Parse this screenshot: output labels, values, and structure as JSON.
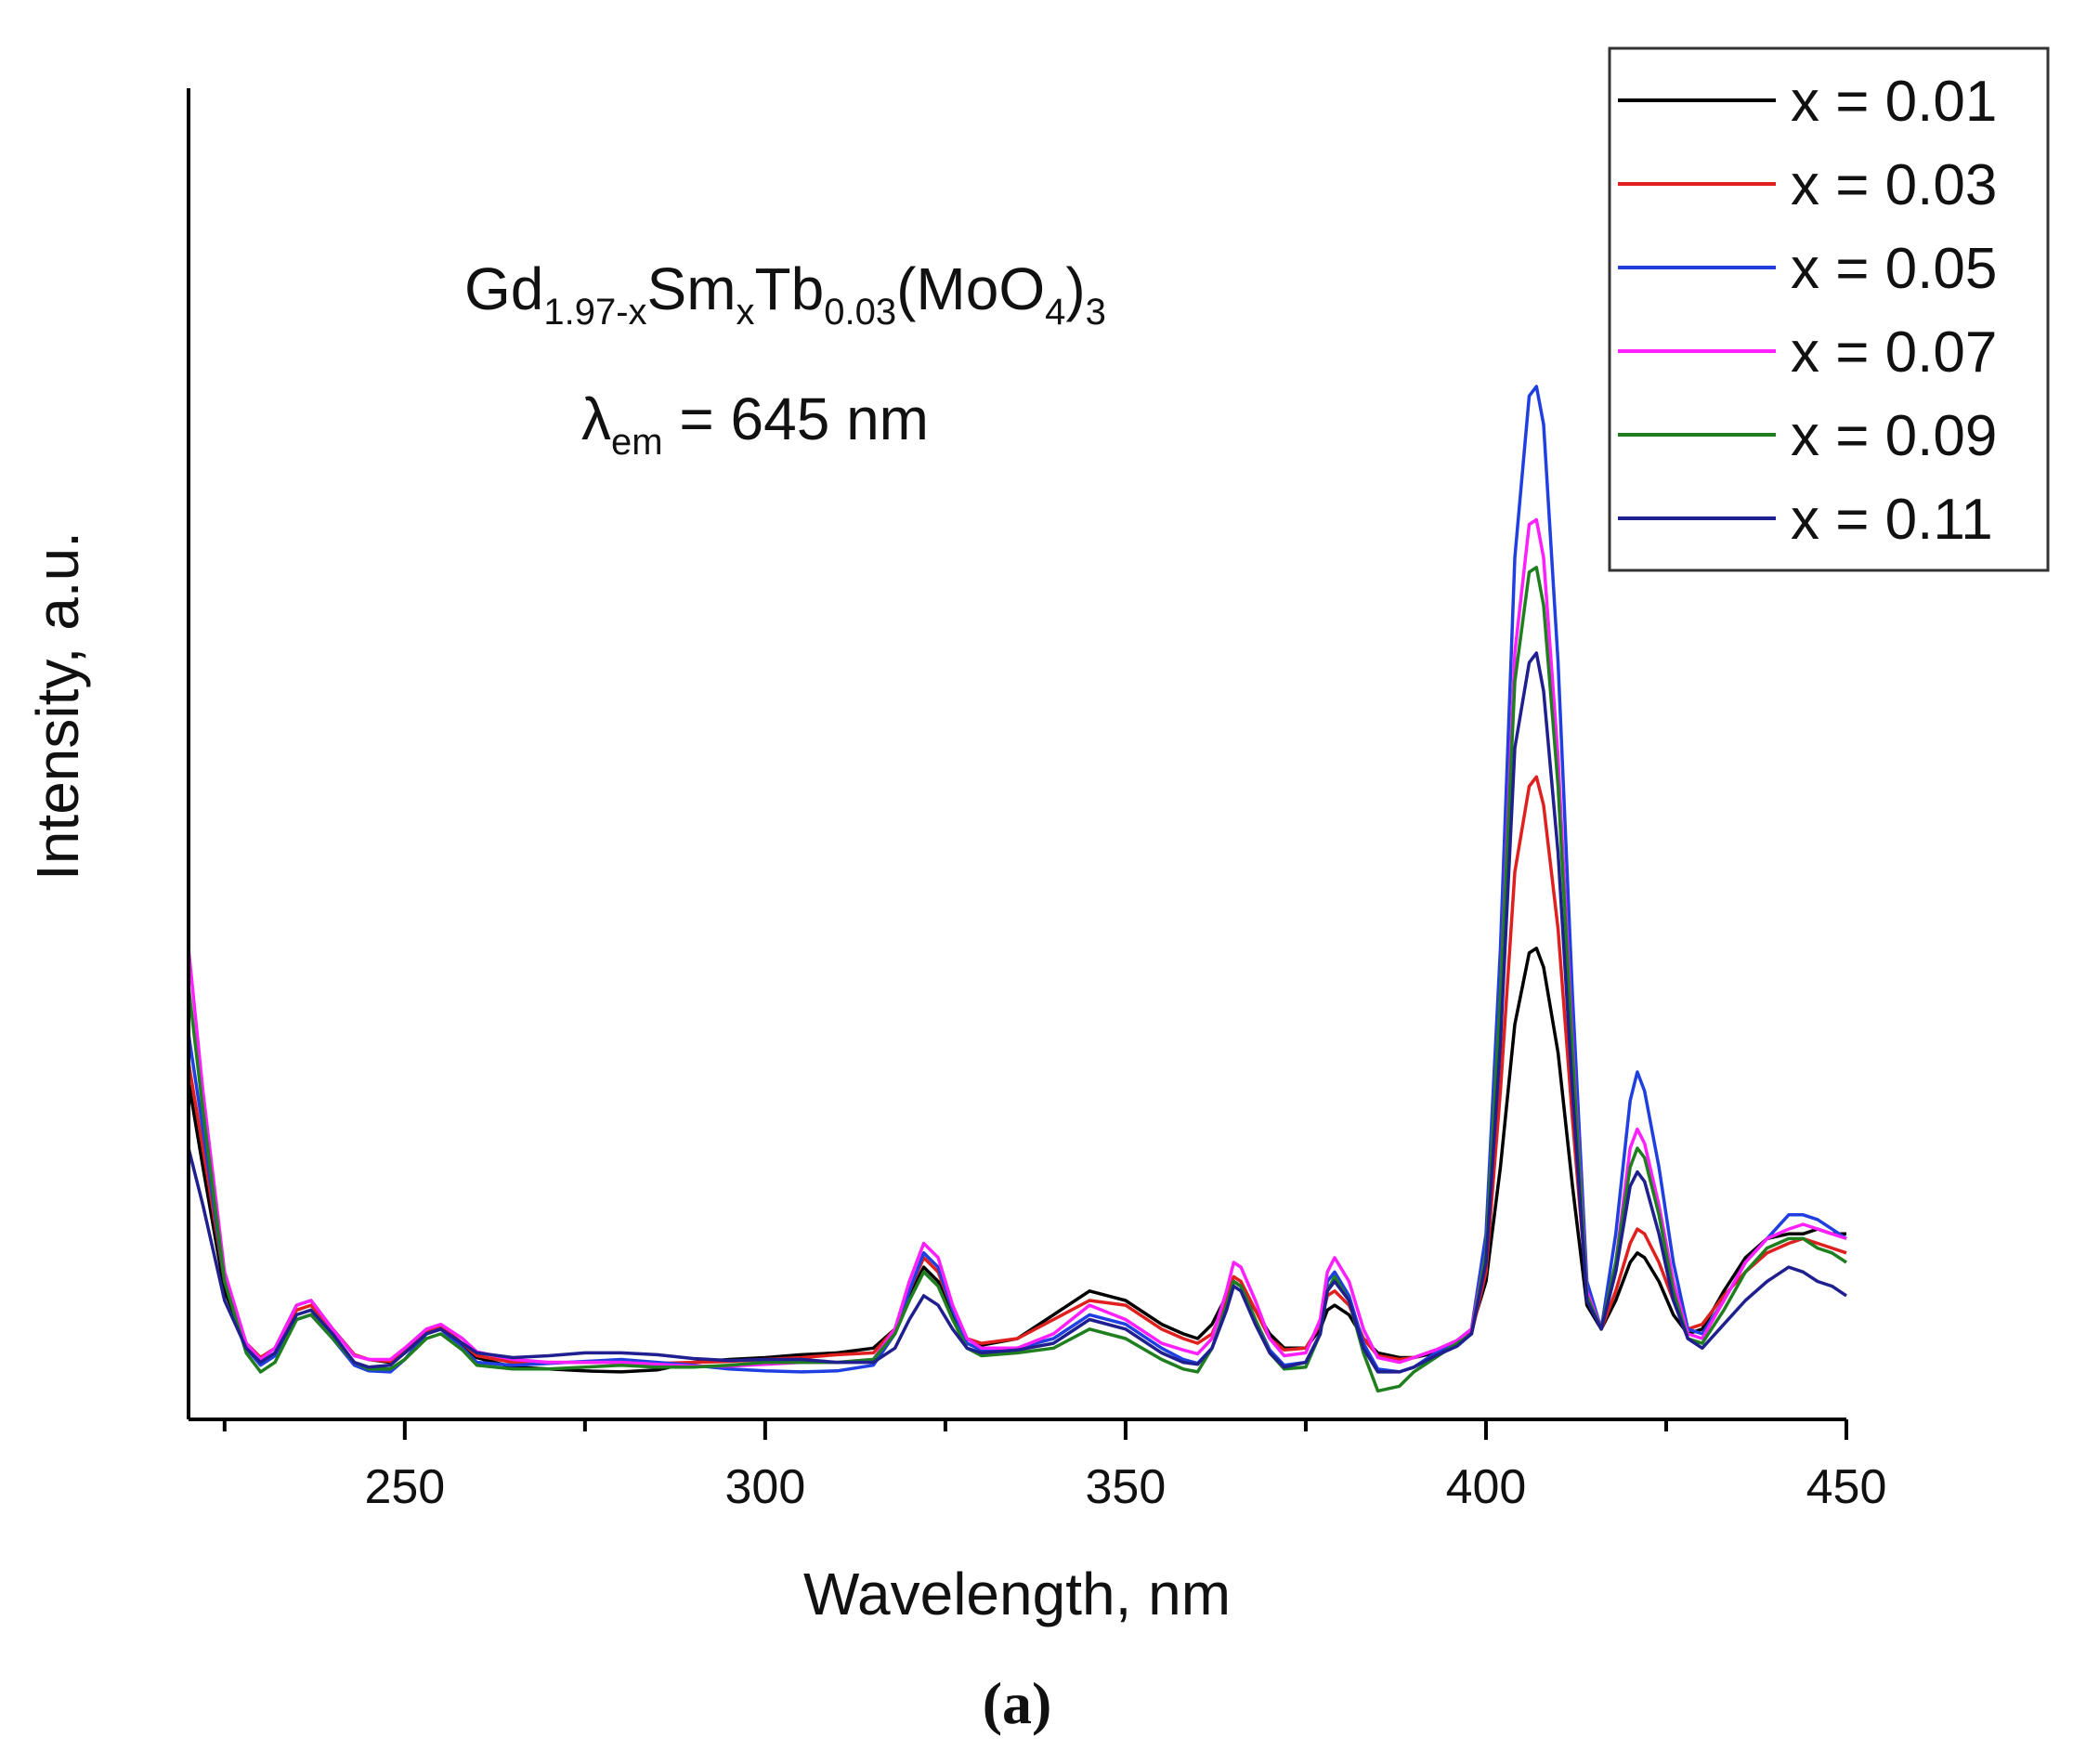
{
  "chart_data": {
    "type": "line",
    "title": "",
    "xlabel": "Wavelength, nm",
    "ylabel": "Intensity, a.u.",
    "xlim": [
      220,
      450
    ],
    "ylim": [
      0,
      100
    ],
    "x_ticks": [
      250,
      300,
      350,
      400,
      450
    ],
    "y_ticks_shown": false,
    "legend_position": "top-right",
    "annotation": {
      "formula": {
        "base1": "Gd",
        "sub1": "1.97-x",
        "base2": "Sm",
        "sub2": "x",
        "base3": "Tb",
        "sub3": "0.03",
        "base4": "(MoO",
        "sub4": "4",
        "base5": ")",
        "sub5": "3"
      },
      "lambda": {
        "symbol": "λ",
        "sub": "em",
        "rest": " = 645 nm"
      }
    },
    "panel_label": {
      "open": "(",
      "letter": "a",
      "close": ")"
    },
    "x": [
      220,
      222,
      225,
      228,
      230,
      232,
      235,
      237,
      240,
      243,
      245,
      248,
      250,
      253,
      255,
      258,
      260,
      265,
      270,
      275,
      280,
      285,
      290,
      295,
      300,
      305,
      310,
      315,
      318,
      320,
      322,
      324,
      326,
      328,
      330,
      335,
      340,
      345,
      350,
      355,
      358,
      360,
      362,
      364,
      365,
      366,
      368,
      370,
      372,
      375,
      377,
      378,
      379,
      381,
      383,
      385,
      388,
      390,
      393,
      396,
      398,
      400,
      402,
      404,
      406,
      407,
      408,
      410,
      412,
      414,
      416,
      418,
      420,
      421,
      422,
      424,
      426,
      428,
      430,
      433,
      436,
      439,
      442,
      444,
      446,
      448,
      450
    ],
    "series": [
      {
        "name": "x = 0.01",
        "color": "#000000",
        "values": [
          31,
          22,
          9,
          3.5,
          2.0,
          3.0,
          7.5,
          8.0,
          5.0,
          2.3,
          1.8,
          1.5,
          2.5,
          4.5,
          5.0,
          3.2,
          2.0,
          1.0,
          0.8,
          0.6,
          0.5,
          0.7,
          1.5,
          1.8,
          2.0,
          2.3,
          2.5,
          3.0,
          5.0,
          8.5,
          11.5,
          10,
          6.5,
          4.0,
          3.3,
          4.0,
          6.5,
          9.0,
          8.0,
          5.5,
          4.5,
          4.0,
          5.5,
          8.5,
          10,
          9.5,
          7.0,
          4.5,
          3.0,
          3.0,
          5.0,
          7.0,
          7.5,
          6.5,
          4.0,
          2.5,
          2.0,
          2.0,
          2.5,
          3.5,
          5.0,
          10,
          22,
          37,
          44.5,
          45,
          43,
          34,
          20,
          7.5,
          5.0,
          8.0,
          12,
          13,
          12.5,
          10,
          6.5,
          4.5,
          5.0,
          9.0,
          12.5,
          14.5,
          15,
          15,
          15.5,
          15,
          15
        ]
      },
      {
        "name": "x = 0.03",
        "color": "#e01f1f",
        "values": [
          33,
          24,
          10,
          3.5,
          2.0,
          3.0,
          7.0,
          7.5,
          5.0,
          2.3,
          1.8,
          1.6,
          2.6,
          4.8,
          5.3,
          3.5,
          2.2,
          1.5,
          1.5,
          1.5,
          1.5,
          1.4,
          1.5,
          1.6,
          1.8,
          2.0,
          2.3,
          2.5,
          5.0,
          9.0,
          12.5,
          11,
          7.0,
          4.0,
          3.5,
          4.0,
          6.0,
          8.0,
          7.5,
          5.0,
          4.0,
          3.5,
          4.5,
          8.0,
          10.5,
          10,
          7.0,
          4.0,
          2.8,
          3.0,
          5.5,
          8.5,
          9.0,
          7.5,
          4.0,
          2.2,
          1.8,
          2.0,
          2.8,
          3.5,
          4.5,
          11,
          30,
          53,
          62,
          63,
          60,
          47,
          27,
          9.0,
          5.0,
          9.0,
          14,
          15.5,
          15,
          12,
          8.0,
          5.0,
          5.5,
          8.5,
          11,
          13,
          14,
          14.5,
          14,
          13.5,
          13
        ]
      },
      {
        "name": "x = 0.05",
        "color": "#1f3fe0",
        "values": [
          36,
          26,
          10,
          3.0,
          1.2,
          2.2,
          6.0,
          6.5,
          4.0,
          1.2,
          0.6,
          0.5,
          1.8,
          4.5,
          5.0,
          3.0,
          1.5,
          1.2,
          1.4,
          1.6,
          1.8,
          1.5,
          1.2,
          0.8,
          0.6,
          0.5,
          0.6,
          1.2,
          4.5,
          9.0,
          13,
          11.5,
          7.0,
          3.5,
          2.8,
          3.0,
          4.0,
          6.5,
          5.5,
          3.0,
          1.8,
          1.4,
          3.0,
          7.0,
          10,
          9.5,
          6.0,
          2.8,
          1.2,
          1.5,
          4.5,
          10,
          11,
          8.5,
          3.5,
          0.8,
          0.5,
          1.0,
          2.5,
          3.8,
          5.0,
          15,
          45,
          86,
          103,
          104,
          100,
          75,
          40,
          10,
          5.0,
          15,
          29,
          32,
          30,
          22,
          12,
          5.0,
          4.5,
          8.0,
          12,
          14.5,
          17,
          17,
          16.5,
          15.5,
          14.5
        ]
      },
      {
        "name": "x = 0.07",
        "color": "#ff1fff",
        "values": [
          45,
          30,
          11,
          3.5,
          1.8,
          3.0,
          7.5,
          8.0,
          5.0,
          2.2,
          1.8,
          1.8,
          3.0,
          5.0,
          5.5,
          4.0,
          2.6,
          1.8,
          1.5,
          1.5,
          1.5,
          1.3,
          1.1,
          1.1,
          1.3,
          1.5,
          1.5,
          1.8,
          5.0,
          10,
          14,
          12.5,
          7.5,
          4.0,
          3.0,
          3.0,
          4.5,
          7.5,
          6.0,
          3.5,
          2.8,
          2.4,
          4.0,
          9.0,
          12,
          11.5,
          8.0,
          4.0,
          2.2,
          2.5,
          6.0,
          11,
          12.5,
          10,
          5.0,
          2.0,
          1.5,
          2.0,
          2.8,
          3.8,
          5.0,
          13,
          40,
          76,
          89.5,
          90,
          86,
          65,
          35,
          9.0,
          5.0,
          12,
          24,
          26,
          24.5,
          18,
          10,
          4.5,
          4.0,
          8.0,
          12,
          14.5,
          15.5,
          16,
          15.5,
          15,
          14.5
        ]
      },
      {
        "name": "x = 0.09",
        "color": "#1f7f1f",
        "values": [
          41,
          28,
          10,
          2.5,
          0.5,
          1.5,
          6.0,
          6.5,
          4.0,
          1.5,
          0.8,
          0.8,
          1.8,
          4.0,
          4.5,
          2.8,
          1.2,
          0.8,
          0.8,
          1.0,
          1.2,
          1.0,
          1.0,
          1.2,
          1.5,
          1.5,
          1.5,
          1.8,
          4.5,
          8.0,
          11,
          9.5,
          6.0,
          3.0,
          2.2,
          2.5,
          3.0,
          5.0,
          4.0,
          1.8,
          0.8,
          0.5,
          3.0,
          7.5,
          10,
          9.5,
          6.0,
          2.5,
          0.8,
          1.0,
          4.5,
          9.0,
          10.5,
          8.0,
          2.5,
          -1.5,
          -1.0,
          0.5,
          2.0,
          3.5,
          4.5,
          13,
          40,
          73,
          84.5,
          85,
          81,
          62,
          34,
          8.5,
          5.0,
          12,
          22,
          24,
          23,
          17,
          9.0,
          4.0,
          3.5,
          7.0,
          11,
          13.5,
          14.5,
          14.5,
          13.5,
          13,
          12
        ]
      },
      {
        "name": "x = 0.11",
        "color": "#1f1f8f",
        "values": [
          24,
          18,
          8,
          3.0,
          1.5,
          2.5,
          6.5,
          7.0,
          4.5,
          1.5,
          1.0,
          1.2,
          2.5,
          4.5,
          5.0,
          3.5,
          2.5,
          2.0,
          2.2,
          2.5,
          2.5,
          2.3,
          1.9,
          1.7,
          1.8,
          1.8,
          1.5,
          1.5,
          3.0,
          6.0,
          8.5,
          7.5,
          5.0,
          3.0,
          2.5,
          2.8,
          3.5,
          6.0,
          5.0,
          2.5,
          1.5,
          1.3,
          3.0,
          7.0,
          9.5,
          9.0,
          5.5,
          2.5,
          1.0,
          1.5,
          4.5,
          9.0,
          10,
          8.0,
          3.0,
          0.5,
          0.5,
          1.0,
          2.2,
          3.2,
          4.5,
          12,
          35,
          66,
          75,
          76,
          72,
          55,
          30,
          8.0,
          5.0,
          11,
          20,
          21.5,
          20.5,
          15,
          8.0,
          4.0,
          3.0,
          5.5,
          8.0,
          10,
          11.5,
          11,
          10,
          9.5,
          8.5
        ]
      }
    ]
  }
}
